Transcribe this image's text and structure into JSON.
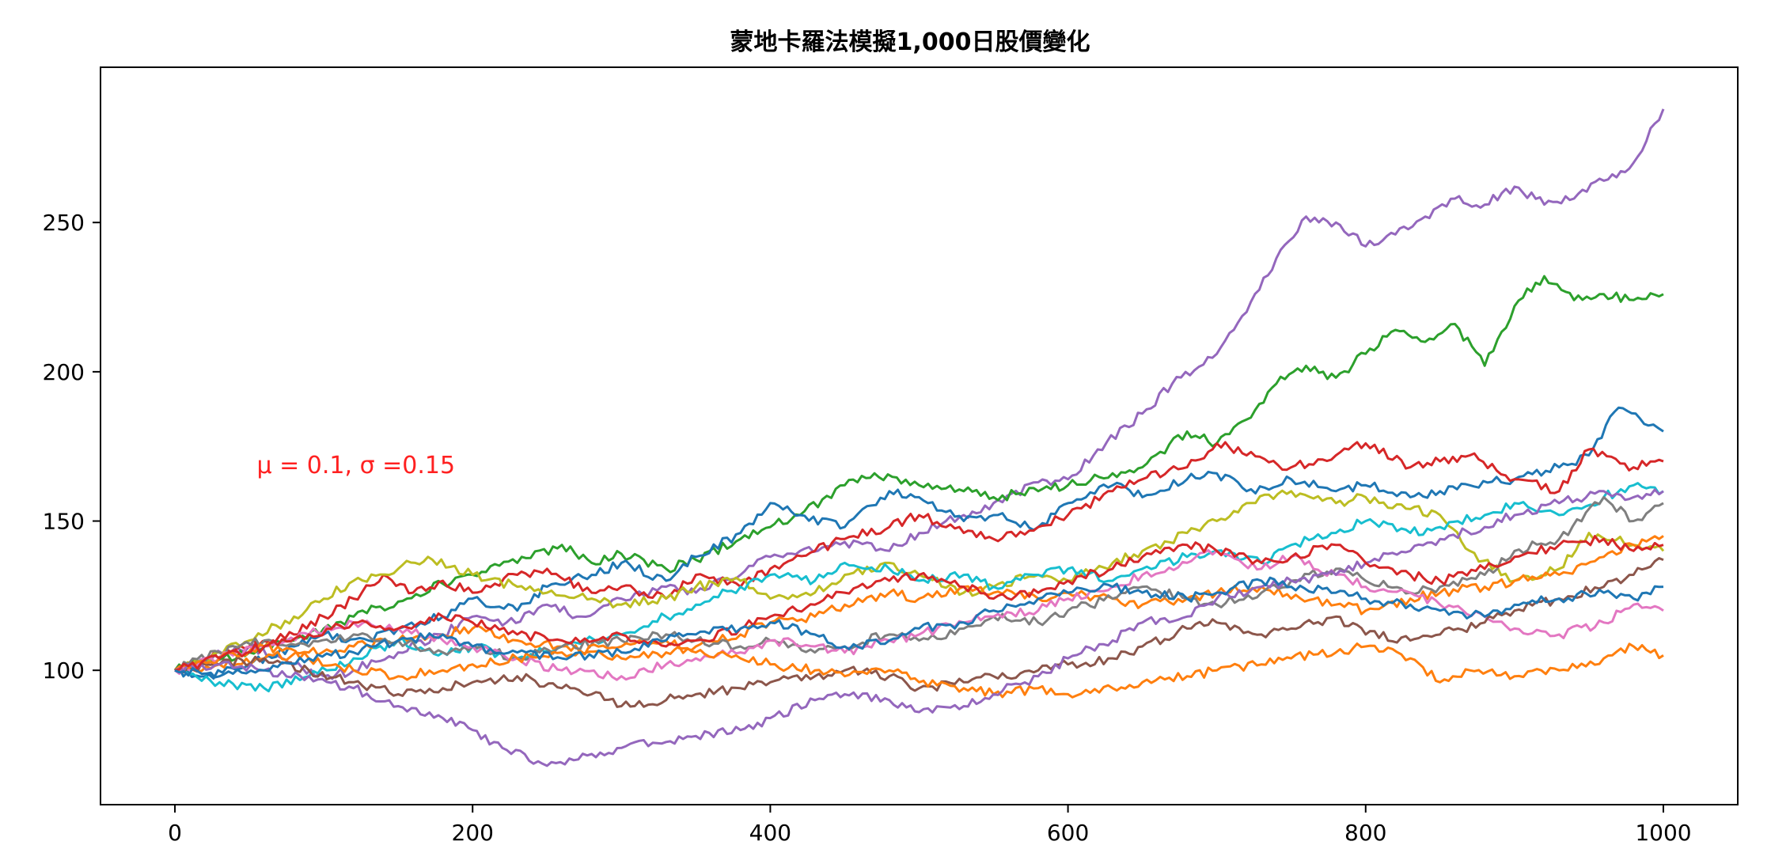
{
  "chart_data": {
    "type": "line",
    "title": "蒙地卡羅法模擬1,000日股價變化",
    "xlabel": "",
    "ylabel": "",
    "xlim": [
      -50,
      1050
    ],
    "ylim": [
      55,
      302
    ],
    "xticks": [
      0,
      200,
      400,
      600,
      800,
      1000
    ],
    "xtick_labels": [
      "0",
      "200",
      "400",
      "600",
      "800",
      "1000"
    ],
    "yticks": [
      100,
      150,
      200,
      250
    ],
    "ytick_labels": [
      "100",
      "150",
      "200",
      "250"
    ],
    "grid": false,
    "legend": "none",
    "annotation": {
      "text": "μ = 0.1, σ =0.15",
      "x": 55,
      "y": 166,
      "color": "#ff2020"
    },
    "series": [
      {
        "color": "#9467bd",
        "x": [
          0,
          20,
          50,
          80,
          100,
          120,
          150,
          180,
          200,
          220,
          250,
          270,
          300,
          330,
          350,
          380,
          400,
          420,
          450,
          480,
          500,
          530,
          550,
          580,
          600,
          620,
          650,
          670,
          700,
          720,
          740,
          760,
          780,
          800,
          820,
          840,
          860,
          880,
          900,
          920,
          940,
          960,
          980,
          1000
        ],
        "y": [
          100,
          104,
          108,
          102,
          98,
          100,
          106,
          112,
          118,
          115,
          122,
          118,
          124,
          128,
          126,
          132,
          138,
          140,
          143,
          140,
          146,
          152,
          156,
          163,
          164,
          174,
          186,
          196,
          206,
          220,
          238,
          252,
          250,
          242,
          246,
          252,
          258,
          256,
          262,
          256,
          258,
          264,
          270,
          288
        ]
      },
      {
        "color": "#2ca02c",
        "x": [
          0,
          20,
          50,
          80,
          100,
          120,
          150,
          180,
          200,
          230,
          260,
          280,
          300,
          330,
          350,
          380,
          400,
          420,
          450,
          470,
          500,
          530,
          550,
          580,
          600,
          630,
          650,
          680,
          700,
          720,
          740,
          760,
          780,
          800,
          820,
          840,
          860,
          880,
          900,
          920,
          940,
          960,
          980,
          1000
        ],
        "y": [
          100,
          103,
          106,
          110,
          114,
          118,
          123,
          129,
          132,
          136,
          142,
          136,
          139,
          134,
          137,
          144,
          148,
          152,
          162,
          166,
          162,
          160,
          158,
          160,
          162,
          166,
          168,
          180,
          176,
          184,
          196,
          202,
          198,
          206,
          214,
          210,
          216,
          202,
          222,
          232,
          224,
          226,
          224,
          226
        ]
      },
      {
        "color": "#1f77b4",
        "x": [
          0,
          20,
          50,
          80,
          100,
          130,
          150,
          180,
          200,
          230,
          250,
          280,
          300,
          330,
          350,
          380,
          400,
          420,
          450,
          480,
          500,
          530,
          550,
          580,
          600,
          630,
          650,
          680,
          700,
          720,
          750,
          780,
          800,
          830,
          850,
          870,
          900,
          930,
          950,
          970,
          990,
          1000
        ],
        "y": [
          100,
          98,
          102,
          108,
          112,
          110,
          114,
          118,
          124,
          120,
          128,
          132,
          136,
          130,
          138,
          146,
          156,
          152,
          148,
          160,
          158,
          150,
          152,
          148,
          156,
          162,
          158,
          164,
          166,
          160,
          164,
          160,
          162,
          158,
          160,
          162,
          164,
          168,
          172,
          188,
          182,
          180
        ]
      },
      {
        "color": "#d62728",
        "x": [
          0,
          20,
          50,
          80,
          100,
          120,
          140,
          160,
          180,
          200,
          230,
          250,
          280,
          300,
          330,
          350,
          380,
          400,
          430,
          450,
          480,
          500,
          530,
          550,
          580,
          600,
          630,
          650,
          680,
          700,
          720,
          750,
          780,
          800,
          830,
          850,
          870,
          900,
          930,
          950,
          980,
          1000
        ],
        "y": [
          100,
          104,
          108,
          112,
          118,
          124,
          132,
          126,
          130,
          126,
          132,
          134,
          126,
          128,
          124,
          132,
          128,
          134,
          140,
          144,
          148,
          152,
          146,
          144,
          148,
          152,
          160,
          164,
          168,
          176,
          172,
          168,
          172,
          176,
          168,
          170,
          172,
          164,
          160,
          174,
          168,
          170
        ]
      },
      {
        "color": "#bcbd22",
        "x": [
          0,
          20,
          50,
          80,
          100,
          120,
          150,
          170,
          200,
          230,
          250,
          280,
          300,
          330,
          350,
          380,
          400,
          430,
          450,
          480,
          500,
          530,
          550,
          580,
          600,
          630,
          650,
          680,
          700,
          720,
          750,
          780,
          800,
          830,
          850,
          870,
          900,
          930,
          950,
          980,
          1000
        ],
        "y": [
          100,
          104,
          110,
          118,
          124,
          130,
          134,
          138,
          132,
          128,
          126,
          124,
          122,
          124,
          128,
          130,
          124,
          126,
          132,
          136,
          132,
          126,
          128,
          132,
          130,
          136,
          140,
          146,
          150,
          156,
          160,
          156,
          158,
          154,
          152,
          140,
          130,
          134,
          146,
          142,
          140
        ]
      },
      {
        "color": "#17becf",
        "x": [
          0,
          30,
          60,
          90,
          120,
          150,
          180,
          200,
          230,
          260,
          300,
          330,
          350,
          380,
          400,
          430,
          450,
          480,
          500,
          530,
          550,
          580,
          600,
          630,
          650,
          680,
          700,
          730,
          750,
          780,
          800,
          830,
          850,
          880,
          900,
          930,
          960,
          980,
          1000
        ],
        "y": [
          100,
          96,
          94,
          98,
          104,
          110,
          106,
          108,
          104,
          108,
          112,
          118,
          122,
          128,
          132,
          130,
          136,
          134,
          130,
          132,
          128,
          132,
          134,
          130,
          134,
          138,
          140,
          136,
          142,
          146,
          150,
          146,
          148,
          152,
          156,
          152,
          158,
          162,
          160
        ]
      },
      {
        "color": "#ff7f0e",
        "x": [
          0,
          30,
          60,
          90,
          120,
          150,
          180,
          200,
          230,
          260,
          300,
          330,
          350,
          380,
          400,
          430,
          450,
          480,
          500,
          530,
          550,
          580,
          600,
          630,
          650,
          680,
          700,
          730,
          750,
          780,
          800,
          830,
          850,
          880,
          900,
          930,
          960,
          980,
          1000
        ],
        "y": [
          100,
          102,
          104,
          106,
          108,
          110,
          112,
          114,
          110,
          108,
          104,
          106,
          108,
          112,
          116,
          118,
          122,
          126,
          124,
          128,
          126,
          124,
          126,
          124,
          122,
          124,
          126,
          128,
          124,
          122,
          120,
          124,
          126,
          128,
          130,
          132,
          138,
          142,
          145
        ]
      },
      {
        "color": "#7f7f7f",
        "x": [
          0,
          30,
          60,
          90,
          120,
          150,
          180,
          200,
          230,
          260,
          300,
          330,
          350,
          380,
          400,
          430,
          450,
          480,
          500,
          530,
          550,
          580,
          600,
          630,
          650,
          680,
          700,
          730,
          750,
          780,
          800,
          830,
          850,
          880,
          900,
          930,
          960,
          980,
          1000
        ],
        "y": [
          100,
          106,
          110,
          108,
          112,
          110,
          106,
          108,
          104,
          108,
          110,
          112,
          110,
          108,
          110,
          106,
          108,
          112,
          110,
          114,
          118,
          116,
          120,
          124,
          128,
          124,
          122,
          126,
          130,
          134,
          130,
          126,
          128,
          132,
          140,
          144,
          158,
          150,
          156
        ]
      },
      {
        "color": "#e377c2",
        "x": [
          0,
          30,
          60,
          90,
          120,
          150,
          180,
          200,
          230,
          260,
          300,
          330,
          350,
          380,
          400,
          430,
          450,
          480,
          500,
          530,
          550,
          580,
          600,
          630,
          650,
          680,
          700,
          730,
          750,
          780,
          800,
          830,
          850,
          880,
          900,
          930,
          960,
          980,
          1000
        ],
        "y": [
          100,
          104,
          108,
          112,
          116,
          114,
          110,
          108,
          104,
          100,
          98,
          102,
          104,
          106,
          110,
          108,
          106,
          110,
          112,
          116,
          118,
          120,
          124,
          128,
          132,
          136,
          140,
          134,
          138,
          132,
          128,
          126,
          122,
          118,
          114,
          112,
          116,
          122,
          120
        ]
      },
      {
        "color": "#8c564b",
        "x": [
          0,
          30,
          60,
          90,
          120,
          150,
          180,
          200,
          230,
          260,
          280,
          300,
          330,
          350,
          380,
          400,
          430,
          450,
          480,
          500,
          530,
          550,
          580,
          600,
          630,
          650,
          680,
          700,
          730,
          750,
          780,
          800,
          830,
          850,
          880,
          900,
          930,
          960,
          980,
          1000
        ],
        "y": [
          100,
          102,
          104,
          100,
          96,
          92,
          94,
          96,
          98,
          94,
          92,
          88,
          90,
          92,
          94,
          96,
          98,
          100,
          98,
          94,
          96,
          98,
          100,
          102,
          104,
          108,
          114,
          116,
          112,
          114,
          118,
          112,
          110,
          112,
          116,
          120,
          124,
          128,
          132,
          137
        ]
      },
      {
        "color": "#ff7f0e",
        "x": [
          0,
          30,
          60,
          90,
          120,
          150,
          180,
          200,
          230,
          260,
          300,
          330,
          350,
          380,
          400,
          430,
          450,
          480,
          500,
          530,
          550,
          580,
          600,
          630,
          650,
          680,
          700,
          730,
          750,
          780,
          800,
          830,
          850,
          870,
          900,
          930,
          960,
          980,
          1000
        ],
        "y": [
          100,
          104,
          108,
          104,
          100,
          98,
          100,
          102,
          104,
          106,
          108,
          110,
          106,
          104,
          102,
          100,
          98,
          100,
          96,
          94,
          92,
          94,
          92,
          94,
          96,
          98,
          100,
          102,
          104,
          106,
          108,
          104,
          96,
          100,
          98,
          100,
          104,
          108,
          105
        ]
      },
      {
        "color": "#9467bd",
        "x": [
          0,
          30,
          60,
          90,
          120,
          150,
          180,
          200,
          220,
          250,
          280,
          300,
          330,
          350,
          380,
          400,
          430,
          450,
          480,
          500,
          530,
          550,
          580,
          600,
          630,
          650,
          680,
          700,
          730,
          750,
          780,
          800,
          830,
          850,
          880,
          900,
          930,
          960,
          980,
          1000
        ],
        "y": [
          100,
          102,
          100,
          98,
          94,
          88,
          84,
          80,
          74,
          68,
          72,
          74,
          76,
          78,
          80,
          84,
          90,
          92,
          90,
          86,
          88,
          92,
          98,
          104,
          110,
          116,
          118,
          124,
          128,
          130,
          132,
          136,
          140,
          144,
          148,
          152,
          156,
          160,
          158,
          160
        ]
      },
      {
        "color": "#d62728",
        "x": [
          0,
          30,
          60,
          90,
          120,
          150,
          180,
          200,
          230,
          260,
          300,
          330,
          350,
          380,
          400,
          430,
          450,
          480,
          500,
          530,
          550,
          580,
          600,
          630,
          650,
          680,
          700,
          730,
          750,
          780,
          800,
          830,
          850,
          880,
          900,
          930,
          960,
          980,
          1000
        ],
        "y": [
          100,
          104,
          108,
          112,
          116,
          114,
          118,
          116,
          112,
          110,
          112,
          108,
          110,
          114,
          118,
          122,
          126,
          130,
          132,
          128,
          124,
          126,
          130,
          134,
          138,
          142,
          140,
          136,
          138,
          142,
          136,
          132,
          130,
          134,
          138,
          142,
          144,
          140,
          142
        ]
      },
      {
        "color": "#1f77b4",
        "x": [
          0,
          30,
          60,
          90,
          120,
          150,
          180,
          200,
          230,
          260,
          300,
          330,
          350,
          380,
          400,
          430,
          450,
          480,
          500,
          530,
          550,
          580,
          600,
          630,
          650,
          680,
          700,
          730,
          750,
          780,
          800,
          830,
          850,
          880,
          900,
          930,
          960,
          980,
          1000
        ],
        "y": [
          100,
          98,
          100,
          104,
          106,
          110,
          112,
          108,
          106,
          104,
          106,
          110,
          112,
          114,
          116,
          112,
          108,
          110,
          114,
          116,
          120,
          124,
          126,
          128,
          126,
          124,
          126,
          130,
          128,
          126,
          124,
          122,
          120,
          118,
          122,
          124,
          126,
          124,
          128
        ]
      }
    ]
  }
}
